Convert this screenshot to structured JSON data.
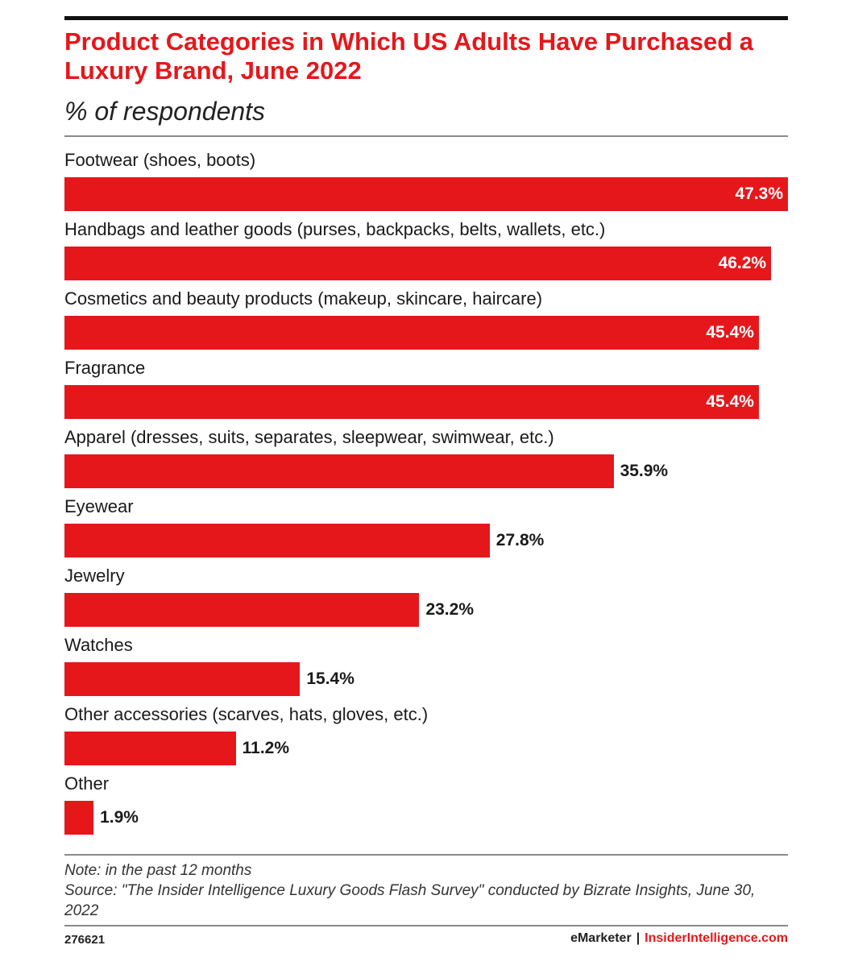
{
  "chart_data": {
    "type": "bar",
    "orientation": "horizontal",
    "title": "Product Categories in Which US Adults Have Purchased a Luxury Brand, June 2022",
    "subtitle": "% of respondents",
    "categories": [
      "Footwear (shoes, boots)",
      "Handbags and leather goods (purses, backpacks, belts, wallets, etc.)",
      "Cosmetics and beauty products (makeup, skincare, haircare)",
      "Fragrance",
      "Apparel (dresses, suits, separates, sleepwear, swimwear, etc.)",
      "Eyewear",
      "Jewelry",
      "Watches",
      "Other accessories (scarves, hats, gloves, etc.)",
      "Other"
    ],
    "values": [
      47.3,
      46.2,
      45.4,
      45.4,
      35.9,
      27.8,
      23.2,
      15.4,
      11.2,
      1.9
    ],
    "value_labels": [
      "47.3%",
      "46.2%",
      "45.4%",
      "45.4%",
      "35.9%",
      "27.8%",
      "23.2%",
      "15.4%",
      "11.2%",
      "1.9%"
    ],
    "xlim": [
      0,
      47.3
    ],
    "grid": false,
    "bar_color": "#e5171b"
  },
  "note": "Note: in the past 12 months",
  "source": "Source: \"The Insider Intelligence Luxury Goods Flash Survey\" conducted by Bizrate Insights, June 30, 2022",
  "chart_id": "276621",
  "brand": {
    "emarketer": "eMarketer",
    "separator": "|",
    "insider": "InsiderIntelligence.com"
  },
  "colors": {
    "accent": "#e5171b",
    "text": "#1a1a1a"
  }
}
